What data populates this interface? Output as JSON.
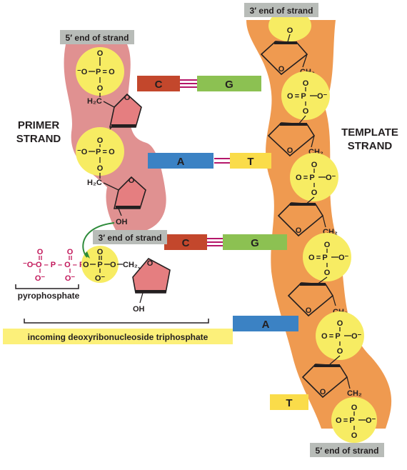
{
  "labels": {
    "primer_5_end": "5′ end of strand",
    "template_3_end": "3′ end of strand",
    "primer_3_end": "3′ end of strand",
    "template_5_end": "5′ end of strand",
    "primer_strand": [
      "PRIMER",
      "STRAND"
    ],
    "template_strand": [
      "TEMPLATE",
      "STRAND"
    ],
    "pyrophosphate": "pyrophosphate",
    "incoming": "incoming deoxyribonucleoside triphosphate"
  },
  "chem": {
    "o": "O",
    "p": "P",
    "oh": "OH",
    "o_minus": "O⁻",
    "minus_o": "⁻O",
    "ch2": "CH₂",
    "h2c": "H₂C",
    "p_eq_o": "P = O",
    "o_eq_p": "O = P",
    "chain": "O – P – O – P – O"
  },
  "bases": {
    "primer": [
      "C",
      "A",
      "C"
    ],
    "template": [
      "G",
      "T",
      "G",
      "A",
      "T"
    ]
  },
  "colors": {
    "primer_backbone": "#e09191",
    "template_backbone": "#ef9a50",
    "phosphate_fill": "#f7ec63",
    "sugar_fill": "#e57e80",
    "cytosine": "#c3472c",
    "guanine": "#8cc152",
    "adenine": "#3b82c4",
    "thymine": "#fadc4a",
    "label_box": "#b8bcb8",
    "incoming_box": "#fcf07a",
    "hbond": "#b5176a",
    "arrow": "#2e8b3b"
  }
}
